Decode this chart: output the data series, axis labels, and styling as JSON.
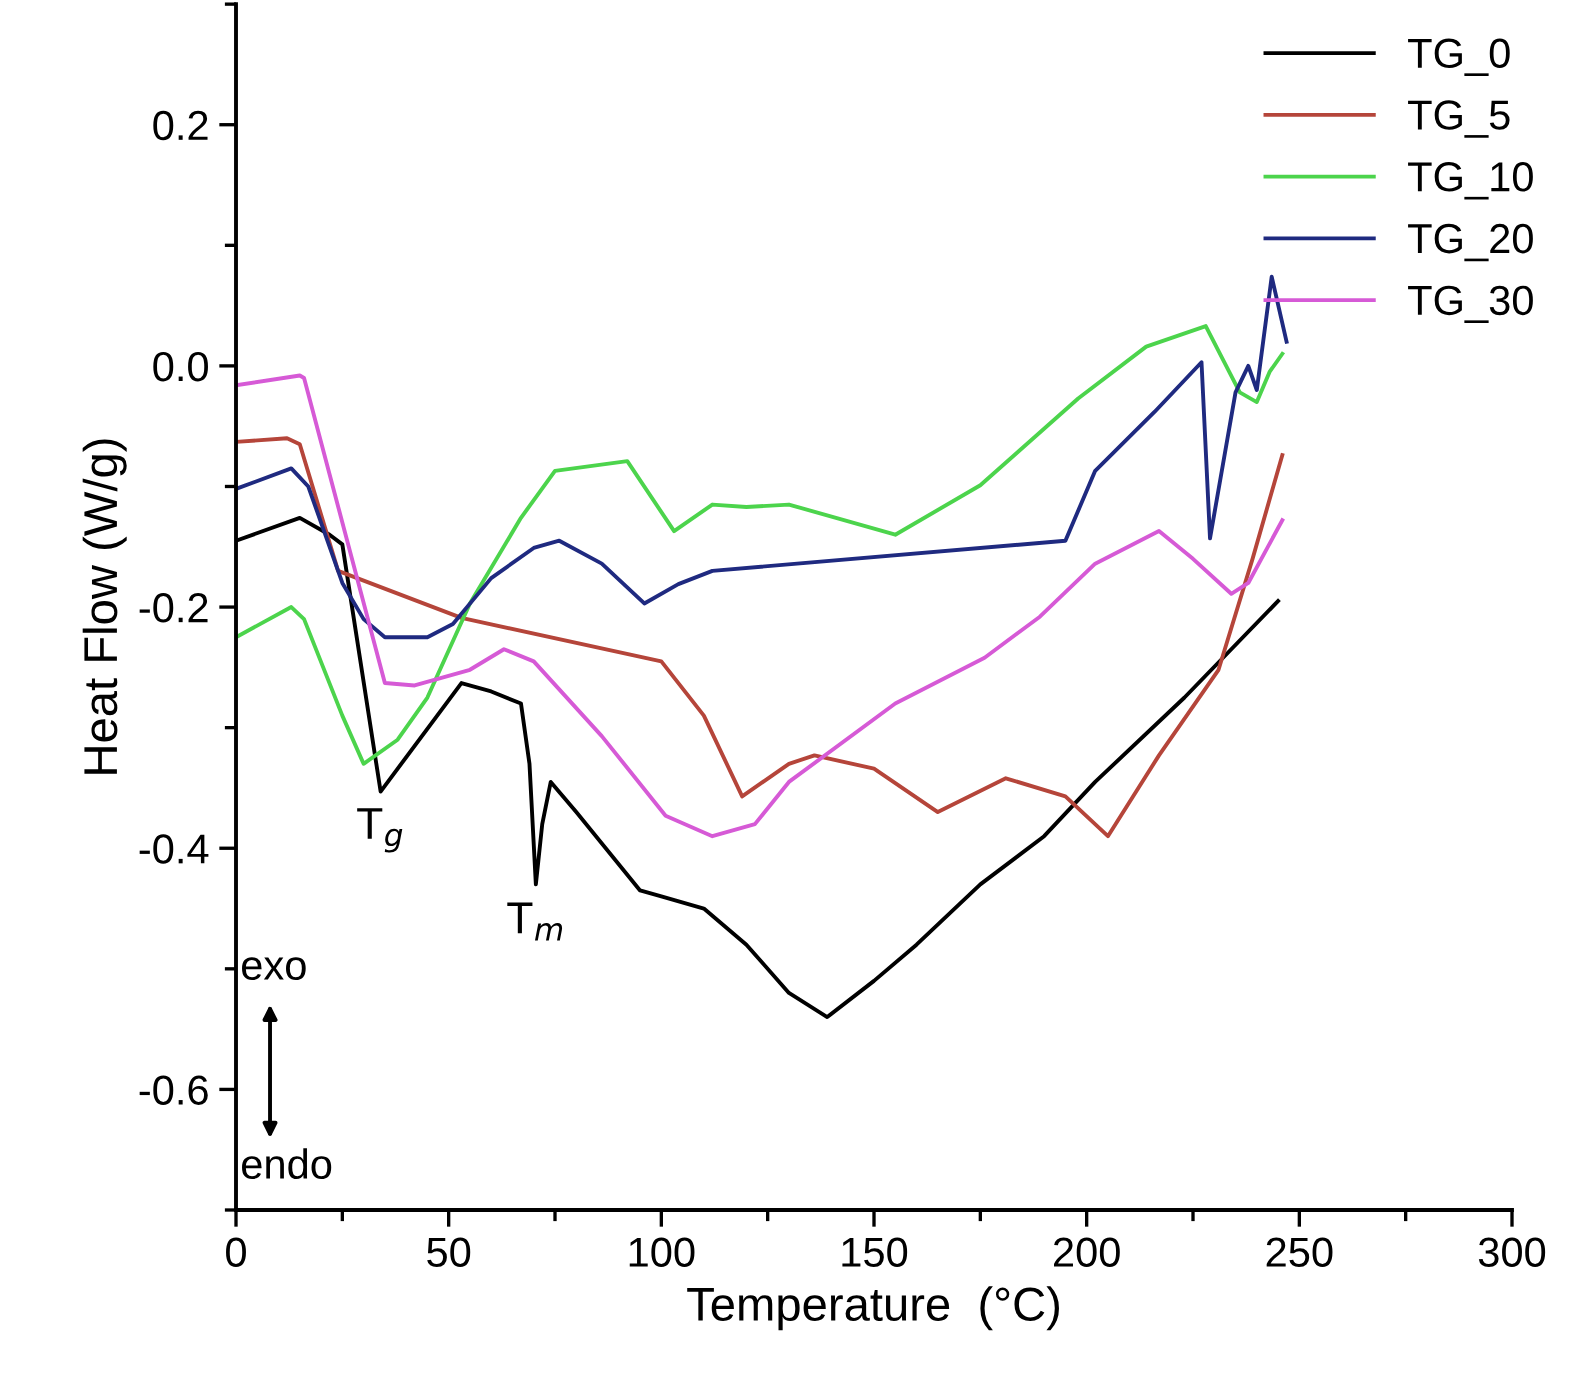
{
  "chart_data": {
    "type": "line",
    "xlabel": "Temperature  (°C)",
    "ylabel": "Heat Flow (W/g)",
    "xlim": [
      0,
      300
    ],
    "ylim": [
      -0.7,
      0.3
    ],
    "xticks": [
      0,
      50,
      100,
      150,
      200,
      250,
      300
    ],
    "yticks": [
      {
        "value": -0.6,
        "label": "-0.6"
      },
      {
        "value": -0.4,
        "label": "-0.4"
      },
      {
        "value": -0.2,
        "label": "-0.2"
      },
      {
        "value": 0.0,
        "label": "0.0"
      },
      {
        "value": 0.2,
        "label": "0.2"
      }
    ],
    "grid": false,
    "legend": "top right",
    "marker": "none",
    "line_style": "solid",
    "annotations": [
      {
        "text": "T$_{g}$",
        "x": 34,
        "y": -0.353
      },
      {
        "text": "T$_{m}$",
        "x": 70.5,
        "y": -0.43
      },
      "exo",
      "endo"
    ],
    "series": [
      {
        "name": "TG_0",
        "color": "#000000",
        "x": [
          0,
          15,
          22,
          25,
          34,
          53,
          60,
          67,
          69,
          70.5,
          72,
          74,
          80,
          95,
          100,
          110,
          120,
          130,
          139,
          150,
          160,
          175,
          190,
          202,
          223,
          245
        ],
        "values": [
          -0.145,
          -0.126,
          -0.14,
          -0.148,
          -0.353,
          -0.263,
          -0.27,
          -0.28,
          -0.33,
          -0.43,
          -0.38,
          -0.345,
          -0.37,
          -0.435,
          -0.44,
          -0.45,
          -0.48,
          -0.52,
          -0.54,
          -0.51,
          -0.48,
          -0.43,
          -0.39,
          -0.345,
          -0.275,
          -0.195
        ]
      },
      {
        "name": "TG_5",
        "color": "#b5453a",
        "x": [
          0,
          12,
          15,
          24,
          53,
          100,
          110,
          119,
          130,
          136,
          150,
          165,
          181,
          195,
          205,
          217,
          231,
          239,
          246
        ],
        "values": [
          -0.063,
          -0.06,
          -0.065,
          -0.17,
          -0.209,
          -0.245,
          -0.29,
          -0.357,
          -0.33,
          -0.323,
          -0.334,
          -0.37,
          -0.342,
          -0.357,
          -0.39,
          -0.323,
          -0.252,
          -0.16,
          -0.074
        ]
      },
      {
        "name": "TG_10",
        "color": "#4cd44c",
        "x": [
          0,
          13,
          16,
          25,
          30,
          38,
          45,
          55,
          67,
          75,
          92,
          103,
          112,
          120,
          130,
          155,
          175,
          198,
          214,
          228,
          236,
          240,
          243,
          246
        ],
        "values": [
          -0.225,
          -0.2,
          -0.21,
          -0.29,
          -0.33,
          -0.31,
          -0.275,
          -0.197,
          -0.126,
          -0.087,
          -0.079,
          -0.137,
          -0.115,
          -0.117,
          -0.115,
          -0.14,
          -0.099,
          -0.027,
          0.016,
          0.033,
          -0.022,
          -0.03,
          -0.005,
          0.01
        ]
      },
      {
        "name": "TG_20",
        "color": "#1f2a80",
        "x": [
          0,
          13,
          17,
          25,
          30,
          35,
          45,
          51,
          60,
          70,
          76,
          86,
          96,
          104,
          112,
          195,
          202,
          216,
          227,
          229,
          235,
          238,
          240,
          243.5,
          247
        ],
        "values": [
          -0.102,
          -0.085,
          -0.1,
          -0.18,
          -0.21,
          -0.225,
          -0.225,
          -0.214,
          -0.176,
          -0.151,
          -0.145,
          -0.164,
          -0.197,
          -0.181,
          -0.17,
          -0.145,
          -0.087,
          -0.038,
          0.003,
          -0.143,
          -0.022,
          0.0,
          -0.02,
          0.074,
          0.02
        ]
      },
      {
        "name": "TG_30",
        "color": "#d65ad6",
        "x": [
          0,
          15,
          16,
          35,
          42,
          55,
          63,
          70,
          86,
          101,
          112,
          122,
          130,
          155,
          176,
          189,
          202,
          217,
          225,
          234,
          238,
          246
        ],
        "values": [
          -0.016,
          -0.008,
          -0.01,
          -0.263,
          -0.265,
          -0.252,
          -0.235,
          -0.245,
          -0.307,
          -0.373,
          -0.39,
          -0.38,
          -0.345,
          -0.28,
          -0.242,
          -0.208,
          -0.164,
          -0.137,
          -0.16,
          -0.189,
          -0.18,
          -0.128
        ]
      }
    ]
  }
}
